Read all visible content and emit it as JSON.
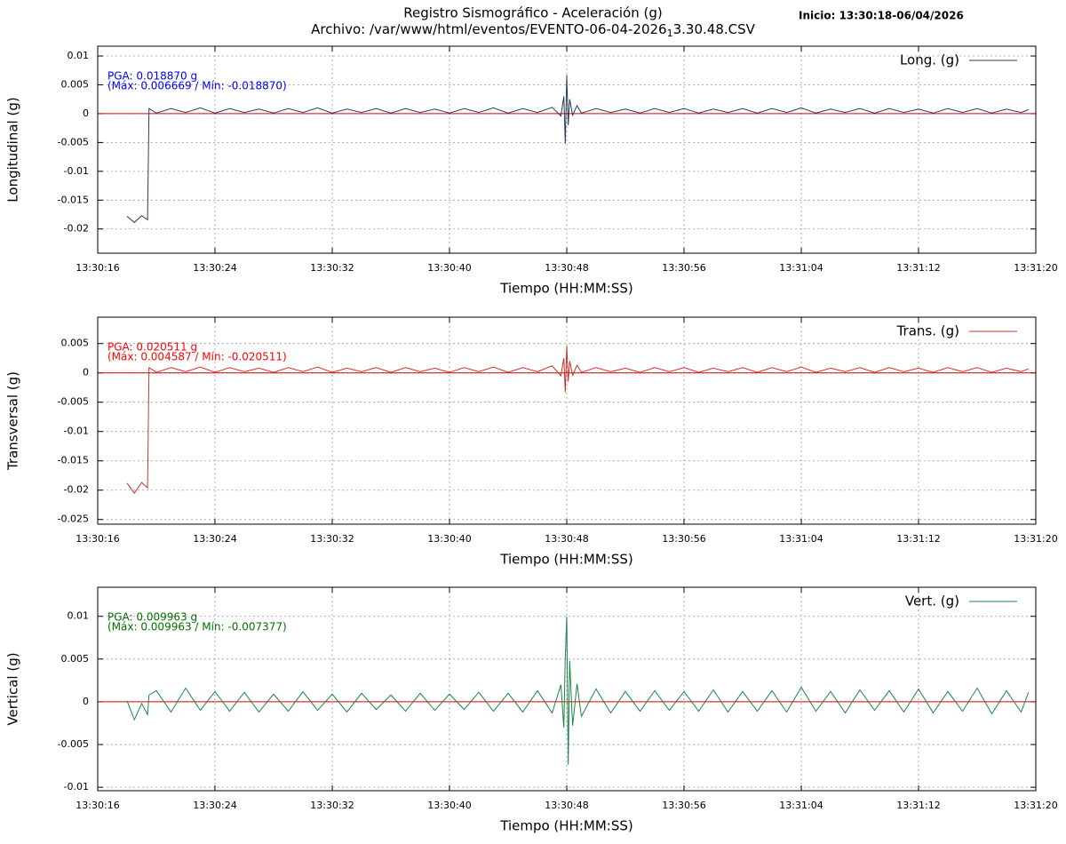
{
  "header": {
    "title": "Registro Sismográfico - Aceleración (g)",
    "subtitle_parts": [
      "Archivo: /var/www/html/eventos/EVENTO-06-04-2026",
      "1",
      "3.30.48.CSV"
    ],
    "start_label": "Inicio: 13:30:18-06/04/2026"
  },
  "chart_data": [
    {
      "type": "line",
      "xlabel": "Tiempo (HH:MM:SS)",
      "ylabel": "Longitudinal (g)",
      "grid": true,
      "legend": "top right",
      "annotations": [
        {
          "text": "PGA: 0.018870 g",
          "color": "#0000ff"
        },
        {
          "text": "(Máx: 0.006669 / Mín: -0.018870)",
          "color": "#0000ff"
        }
      ],
      "xlim": [
        "13:30:16",
        "13:31:20"
      ],
      "xticks": [
        "13:30:16",
        "13:30:24",
        "13:30:32",
        "13:30:40",
        "13:30:48",
        "13:30:56",
        "13:31:04",
        "13:31:12",
        "13:31:20"
      ],
      "ylim": [
        -0.0242,
        0.0117
      ],
      "yticks": [
        -0.02,
        -0.015,
        -0.01,
        -0.005,
        0,
        0.005,
        0.01
      ],
      "x": [
        "13:30:18",
        "13:30:18.5",
        "13:30:19",
        "13:30:19.4",
        "13:30:19.5",
        "13:30:20",
        "13:30:21",
        "13:30:22",
        "13:30:23",
        "13:30:24",
        "13:30:25",
        "13:30:26",
        "13:30:27",
        "13:30:28",
        "13:30:29",
        "13:30:30",
        "13:30:31",
        "13:30:32",
        "13:30:33",
        "13:30:34",
        "13:30:35",
        "13:30:36",
        "13:30:37",
        "13:30:38",
        "13:30:39",
        "13:30:40",
        "13:30:41",
        "13:30:42",
        "13:30:43",
        "13:30:44",
        "13:30:45",
        "13:30:46",
        "13:30:47",
        "13:30:47.6",
        "13:30:47.8",
        "13:30:47.9",
        "13:30:48",
        "13:30:48.1",
        "13:30:48.2",
        "13:30:48.4",
        "13:30:48.7",
        "13:30:49",
        "13:30:50",
        "13:30:51",
        "13:30:52",
        "13:30:53",
        "13:30:54",
        "13:30:55",
        "13:30:56",
        "13:30:57",
        "13:30:58",
        "13:30:59",
        "13:31:00",
        "13:31:01",
        "13:31:02",
        "13:31:03",
        "13:31:04",
        "13:31:05",
        "13:31:06",
        "13:31:07",
        "13:31:08",
        "13:31:09",
        "13:31:10",
        "13:31:11",
        "13:31:12",
        "13:31:13",
        "13:31:14",
        "13:31:15",
        "13:31:16",
        "13:31:17",
        "13:31:18",
        "13:31:19",
        "13:31:19.5"
      ],
      "series": [
        {
          "name": "Long. (g)",
          "color": "#2a3d55",
          "values": [
            -0.0178,
            -0.01887,
            -0.0177,
            -0.0184,
            0.0009,
            0.0001,
            0.0009,
            0.0002,
            0.001,
            0.0001,
            0.0009,
            0.0002,
            0.0008,
            0.0001,
            0.0009,
            0.0002,
            0.001,
            0.0001,
            0.0008,
            0.0002,
            0.0009,
            0.0001,
            0.0009,
            0.0002,
            0.0008,
            0.0001,
            0.0009,
            0.0002,
            0.001,
            0.0001,
            0.0009,
            0.0002,
            0.0011,
            -0.0004,
            0.003,
            -0.0052,
            0.006669,
            -0.002,
            0.0025,
            -0.0003,
            0.0014,
            0.0001,
            0.0009,
            0.0002,
            0.0008,
            0.0001,
            0.0009,
            0.0002,
            0.0009,
            0.0001,
            0.0008,
            0.0002,
            0.0009,
            0.0001,
            0.0009,
            0.0002,
            0.001,
            0.0001,
            0.0008,
            0.0002,
            0.0009,
            0.0001,
            0.0009,
            0.0002,
            0.0008,
            0.0001,
            0.0009,
            0.0002,
            0.0009,
            0.0001,
            0.0008,
            0.0002,
            0.0007
          ]
        }
      ]
    },
    {
      "type": "line",
      "xlabel": "Tiempo (HH:MM:SS)",
      "ylabel": "Transversal (g)",
      "grid": true,
      "legend": "top right",
      "annotations": [
        {
          "text": "PGA: 0.020511 g",
          "color": "#ff0000"
        },
        {
          "text": "(Máx: 0.004587 / Mín: -0.020511)",
          "color": "#ff0000"
        }
      ],
      "xlim": [
        "13:30:16",
        "13:31:20"
      ],
      "xticks": [
        "13:30:16",
        "13:30:24",
        "13:30:32",
        "13:30:40",
        "13:30:48",
        "13:30:56",
        "13:31:04",
        "13:31:12",
        "13:31:20"
      ],
      "ylim": [
        -0.0258,
        0.0095
      ],
      "yticks": [
        -0.025,
        -0.02,
        -0.015,
        -0.01,
        -0.005,
        0,
        0.005
      ],
      "x": [
        "13:30:18",
        "13:30:18.5",
        "13:30:19",
        "13:30:19.4",
        "13:30:19.5",
        "13:30:20",
        "13:30:21",
        "13:30:22",
        "13:30:23",
        "13:30:24",
        "13:30:25",
        "13:30:26",
        "13:30:27",
        "13:30:28",
        "13:30:29",
        "13:30:30",
        "13:30:31",
        "13:30:32",
        "13:30:33",
        "13:30:34",
        "13:30:35",
        "13:30:36",
        "13:30:37",
        "13:30:38",
        "13:30:39",
        "13:30:40",
        "13:30:41",
        "13:30:42",
        "13:30:43",
        "13:30:44",
        "13:30:45",
        "13:30:46",
        "13:30:47",
        "13:30:47.6",
        "13:30:47.8",
        "13:30:47.9",
        "13:30:48",
        "13:30:48.1",
        "13:30:48.2",
        "13:30:48.4",
        "13:30:48.7",
        "13:30:49",
        "13:30:50",
        "13:30:51",
        "13:30:52",
        "13:30:53",
        "13:30:54",
        "13:30:55",
        "13:30:56",
        "13:30:57",
        "13:30:58",
        "13:30:59",
        "13:31:00",
        "13:31:01",
        "13:31:02",
        "13:31:03",
        "13:31:04",
        "13:31:05",
        "13:31:06",
        "13:31:07",
        "13:31:08",
        "13:31:09",
        "13:31:10",
        "13:31:11",
        "13:31:12",
        "13:31:13",
        "13:31:14",
        "13:31:15",
        "13:31:16",
        "13:31:17",
        "13:31:18",
        "13:31:19",
        "13:31:19.5"
      ],
      "series": [
        {
          "name": "Trans. (g)",
          "color": "#c0392b",
          "values": [
            -0.0188,
            -0.020511,
            -0.0187,
            -0.0196,
            0.0009,
            0.0001,
            0.0009,
            0.0002,
            0.001,
            0.0001,
            0.0009,
            0.0002,
            0.0008,
            0.0001,
            0.0009,
            0.0002,
            0.001,
            0.0001,
            0.0008,
            0.0002,
            0.0009,
            0.0001,
            0.0009,
            0.0002,
            0.0008,
            0.0001,
            0.0009,
            0.0002,
            0.001,
            0.0001,
            0.0009,
            0.0002,
            0.0012,
            -0.0005,
            0.0025,
            -0.0033,
            0.004587,
            -0.0015,
            0.002,
            -0.0004,
            0.0013,
            0.0001,
            0.0009,
            0.0002,
            0.0008,
            0.0001,
            0.0009,
            0.0002,
            0.0009,
            0.0001,
            0.0008,
            0.0002,
            0.0009,
            0.0001,
            0.0009,
            0.0002,
            0.001,
            0.0001,
            0.0008,
            0.0002,
            0.0009,
            0.0001,
            0.0009,
            0.0002,
            0.0008,
            0.0001,
            0.0009,
            0.0002,
            0.0009,
            0.0001,
            0.0008,
            0.0002,
            0.0007
          ]
        }
      ]
    },
    {
      "type": "line",
      "xlabel": "Tiempo (HH:MM:SS)",
      "ylabel": "Vertical (g)",
      "grid": true,
      "legend": "top right",
      "annotations": [
        {
          "text": "PGA: 0.009963 g",
          "color": "#007000"
        },
        {
          "text": "(Máx: 0.009963 / Mín: -0.007377)",
          "color": "#007000"
        }
      ],
      "xlim": [
        "13:30:16",
        "13:31:20"
      ],
      "xticks": [
        "13:30:16",
        "13:30:24",
        "13:30:32",
        "13:30:40",
        "13:30:48",
        "13:30:56",
        "13:31:04",
        "13:31:12",
        "13:31:20"
      ],
      "ylim": [
        -0.0104,
        0.0134
      ],
      "yticks": [
        -0.01,
        -0.005,
        0,
        0.005,
        0.01
      ],
      "x": [
        "13:30:18",
        "13:30:18.5",
        "13:30:19",
        "13:30:19.4",
        "13:30:19.5",
        "13:30:20",
        "13:30:21",
        "13:30:22",
        "13:30:23",
        "13:30:24",
        "13:30:25",
        "13:30:26",
        "13:30:27",
        "13:30:28",
        "13:30:29",
        "13:30:30",
        "13:30:31",
        "13:30:32",
        "13:30:33",
        "13:30:34",
        "13:30:35",
        "13:30:36",
        "13:30:37",
        "13:30:38",
        "13:30:39",
        "13:30:40",
        "13:30:41",
        "13:30:42",
        "13:30:43",
        "13:30:44",
        "13:30:45",
        "13:30:46",
        "13:30:47",
        "13:30:47.6",
        "13:30:47.8",
        "13:30:47.9",
        "13:30:48",
        "13:30:48.1",
        "13:30:48.2",
        "13:30:48.4",
        "13:30:48.7",
        "13:30:49",
        "13:30:50",
        "13:30:51",
        "13:30:52",
        "13:30:53",
        "13:30:54",
        "13:30:55",
        "13:30:56",
        "13:30:57",
        "13:30:58",
        "13:30:59",
        "13:31:00",
        "13:31:01",
        "13:31:02",
        "13:31:03",
        "13:31:04",
        "13:31:05",
        "13:31:06",
        "13:31:07",
        "13:31:08",
        "13:31:09",
        "13:31:10",
        "13:31:11",
        "13:31:12",
        "13:31:13",
        "13:31:14",
        "13:31:15",
        "13:31:16",
        "13:31:17",
        "13:31:18",
        "13:31:19",
        "13:31:19.5"
      ],
      "series": [
        {
          "name": "Vert. (g)",
          "color": "#1e8449",
          "values": [
            0.0001,
            -0.0021,
            -0.0002,
            -0.0015,
            0.0008,
            0.0013,
            -0.0012,
            0.0016,
            -0.001,
            0.0012,
            -0.0011,
            0.0011,
            -0.0012,
            0.0009,
            -0.0011,
            0.0012,
            -0.001,
            0.0009,
            -0.0012,
            0.001,
            -0.0009,
            0.0008,
            -0.0011,
            0.001,
            -0.001,
            0.0009,
            -0.0009,
            0.0011,
            -0.0011,
            0.001,
            -0.0012,
            0.0013,
            -0.0013,
            0.002,
            -0.003,
            0.0052,
            0.009963,
            -0.007377,
            0.0048,
            -0.0028,
            0.0021,
            -0.0017,
            0.0015,
            -0.0013,
            0.0012,
            -0.0011,
            0.0013,
            -0.001,
            0.0012,
            -0.0011,
            0.0014,
            -0.0012,
            0.0012,
            -0.0011,
            0.0013,
            -0.0012,
            0.0017,
            -0.0011,
            0.0012,
            -0.0013,
            0.0014,
            -0.001,
            0.0013,
            -0.0012,
            0.0015,
            -0.0013,
            0.0012,
            -0.0011,
            0.0016,
            -0.0014,
            0.0013,
            -0.0012,
            0.0011
          ]
        }
      ]
    }
  ]
}
